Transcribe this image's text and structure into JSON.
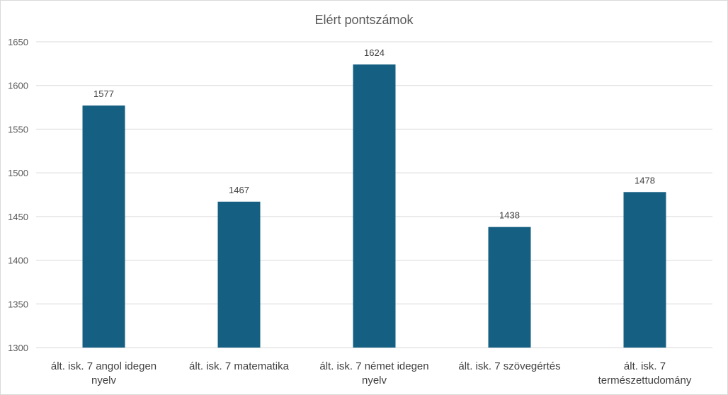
{
  "chart_data": {
    "type": "bar",
    "title": "Elért pontszámok",
    "categories": [
      [
        "ált. isk. 7 angol idegen",
        "nyelv"
      ],
      [
        "ált. isk. 7 matematika"
      ],
      [
        "ált. isk. 7 német idegen",
        "nyelv"
      ],
      [
        "ált. isk. 7 szövegértés"
      ],
      [
        "ált. isk. 7",
        "természettudomány"
      ]
    ],
    "values": [
      1577,
      1467,
      1624,
      1438,
      1478
    ],
    "data_labels": [
      "1577",
      "1467",
      "1624",
      "1438",
      "1478"
    ],
    "ylim": [
      1300,
      1650
    ],
    "yticks": [
      1300,
      1350,
      1400,
      1450,
      1500,
      1550,
      1600,
      1650
    ],
    "ytick_labels": [
      "1300",
      "1350",
      "1400",
      "1450",
      "1500",
      "1550",
      "1600",
      "1650"
    ],
    "grid": true,
    "legend": "none",
    "bar_color": "#156082",
    "grid_color": "#d9d9d9"
  }
}
